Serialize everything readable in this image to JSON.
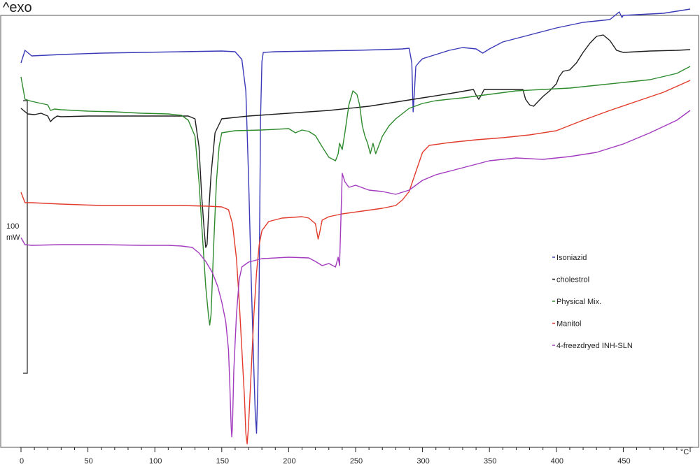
{
  "header": {
    "exo_label": "^exo"
  },
  "scale_bar": {
    "value_label": "100",
    "unit_label": "mW"
  },
  "chart_data": {
    "type": "line",
    "title": "",
    "xlabel": "",
    "ylabel": "",
    "x_unit": "°C",
    "xlim": [
      0,
      500
    ],
    "ylim": [
      0,
      650
    ],
    "x_ticks": [
      0,
      50,
      100,
      150,
      200,
      250,
      300,
      350,
      400,
      450
    ],
    "grid": false,
    "legend_position": "right",
    "series": [
      {
        "name": "Isoniazid",
        "color": "#3a3ab8",
        "points": [
          [
            0,
            560
          ],
          [
            3,
            578
          ],
          [
            8,
            570
          ],
          [
            30,
            572
          ],
          [
            60,
            574
          ],
          [
            90,
            575
          ],
          [
            120,
            576
          ],
          [
            150,
            577
          ],
          [
            160,
            576
          ],
          [
            165,
            565
          ],
          [
            168,
            520
          ],
          [
            170,
            400
          ],
          [
            172,
            250
          ],
          [
            174,
            120
          ],
          [
            175,
            60
          ],
          [
            176,
            30
          ],
          [
            177,
            100
          ],
          [
            178,
            250
          ],
          [
            179,
            480
          ],
          [
            180,
            562
          ],
          [
            181,
            575
          ],
          [
            190,
            576
          ],
          [
            220,
            577
          ],
          [
            250,
            578
          ],
          [
            270,
            579
          ],
          [
            285,
            580
          ],
          [
            290,
            581
          ],
          [
            292,
            560
          ],
          [
            293,
            490
          ],
          [
            294,
            520
          ],
          [
            295,
            555
          ],
          [
            297,
            560
          ],
          [
            300,
            566
          ],
          [
            310,
            572
          ],
          [
            320,
            578
          ],
          [
            330,
            582
          ],
          [
            340,
            580
          ],
          [
            345,
            574
          ],
          [
            350,
            580
          ],
          [
            360,
            590
          ],
          [
            380,
            600
          ],
          [
            400,
            610
          ],
          [
            420,
            618
          ],
          [
            440,
            622
          ],
          [
            447,
            633
          ],
          [
            449,
            625
          ],
          [
            450,
            628
          ],
          [
            460,
            629
          ],
          [
            480,
            631
          ],
          [
            500,
            637
          ]
        ]
      },
      {
        "name": "cholestrol",
        "color": "#1e1e1e",
        "points": [
          [
            0,
            495
          ],
          [
            5,
            487
          ],
          [
            10,
            486
          ],
          [
            15,
            488
          ],
          [
            20,
            484
          ],
          [
            22,
            476
          ],
          [
            24,
            480
          ],
          [
            27,
            484
          ],
          [
            30,
            483
          ],
          [
            50,
            484
          ],
          [
            70,
            484
          ],
          [
            90,
            484
          ],
          [
            100,
            484
          ],
          [
            115,
            484
          ],
          [
            125,
            484
          ],
          [
            130,
            480
          ],
          [
            133,
            440
          ],
          [
            135,
            370
          ],
          [
            137,
            318
          ],
          [
            138,
            296
          ],
          [
            139,
            300
          ],
          [
            140,
            340
          ],
          [
            142,
            400
          ],
          [
            145,
            460
          ],
          [
            150,
            480
          ],
          [
            170,
            484
          ],
          [
            200,
            488
          ],
          [
            230,
            492
          ],
          [
            260,
            498
          ],
          [
            280,
            504
          ],
          [
            300,
            510
          ],
          [
            320,
            516
          ],
          [
            338,
            522
          ],
          [
            340,
            514
          ],
          [
            342,
            508
          ],
          [
            344,
            514
          ],
          [
            346,
            522
          ],
          [
            360,
            522
          ],
          [
            375,
            522
          ],
          [
            377,
            508
          ],
          [
            380,
            500
          ],
          [
            383,
            498
          ],
          [
            386,
            504
          ],
          [
            390,
            512
          ],
          [
            395,
            520
          ],
          [
            400,
            530
          ],
          [
            402,
            540
          ],
          [
            405,
            548
          ],
          [
            410,
            550
          ],
          [
            415,
            560
          ],
          [
            420,
            575
          ],
          [
            425,
            588
          ],
          [
            430,
            598
          ],
          [
            435,
            600
          ],
          [
            440,
            592
          ],
          [
            445,
            578
          ],
          [
            450,
            575
          ],
          [
            470,
            577
          ],
          [
            490,
            578
          ],
          [
            500,
            579
          ]
        ]
      },
      {
        "name": "Physical Mix.",
        "color": "#2e8b2e",
        "points": [
          [
            0,
            540
          ],
          [
            3,
            508
          ],
          [
            8,
            505
          ],
          [
            20,
            500
          ],
          [
            22,
            492
          ],
          [
            25,
            494
          ],
          [
            30,
            493
          ],
          [
            50,
            491
          ],
          [
            70,
            490
          ],
          [
            90,
            488
          ],
          [
            110,
            487
          ],
          [
            120,
            485
          ],
          [
            125,
            478
          ],
          [
            130,
            455
          ],
          [
            133,
            390
          ],
          [
            136,
            300
          ],
          [
            138,
            240
          ],
          [
            140,
            200
          ],
          [
            141,
            185
          ],
          [
            142,
            200
          ],
          [
            144,
            300
          ],
          [
            146,
            390
          ],
          [
            148,
            440
          ],
          [
            150,
            460
          ],
          [
            160,
            463
          ],
          [
            180,
            464
          ],
          [
            200,
            466
          ],
          [
            205,
            460
          ],
          [
            210,
            464
          ],
          [
            215,
            462
          ],
          [
            220,
            456
          ],
          [
            225,
            440
          ],
          [
            230,
            425
          ],
          [
            235,
            420
          ],
          [
            237,
            430
          ],
          [
            238,
            445
          ],
          [
            240,
            436
          ],
          [
            242,
            460
          ],
          [
            245,
            500
          ],
          [
            248,
            520
          ],
          [
            251,
            515
          ],
          [
            253,
            500
          ],
          [
            255,
            470
          ],
          [
            257,
            455
          ],
          [
            259,
            445
          ],
          [
            261,
            430
          ],
          [
            263,
            445
          ],
          [
            265,
            430
          ],
          [
            267,
            440
          ],
          [
            270,
            455
          ],
          [
            275,
            470
          ],
          [
            280,
            480
          ],
          [
            290,
            495
          ],
          [
            300,
            502
          ],
          [
            310,
            506
          ],
          [
            330,
            510
          ],
          [
            350,
            515
          ],
          [
            370,
            520
          ],
          [
            390,
            522
          ],
          [
            410,
            524
          ],
          [
            430,
            528
          ],
          [
            450,
            532
          ],
          [
            470,
            536
          ],
          [
            490,
            545
          ],
          [
            500,
            555
          ]
        ]
      },
      {
        "name": "Manitol",
        "color": "#e23b2b",
        "points": [
          [
            0,
            375
          ],
          [
            3,
            360
          ],
          [
            8,
            360
          ],
          [
            30,
            358
          ],
          [
            60,
            356
          ],
          [
            90,
            356
          ],
          [
            120,
            356
          ],
          [
            140,
            355
          ],
          [
            150,
            354
          ],
          [
            155,
            350
          ],
          [
            158,
            330
          ],
          [
            161,
            280
          ],
          [
            163,
            220
          ],
          [
            165,
            150
          ],
          [
            167,
            80
          ],
          [
            168,
            30
          ],
          [
            169,
            15
          ],
          [
            170,
            40
          ],
          [
            172,
            120
          ],
          [
            174,
            200
          ],
          [
            176,
            260
          ],
          [
            178,
            300
          ],
          [
            180,
            320
          ],
          [
            185,
            333
          ],
          [
            195,
            338
          ],
          [
            210,
            340
          ],
          [
            215,
            338
          ],
          [
            220,
            330
          ],
          [
            222,
            308
          ],
          [
            223,
            316
          ],
          [
            225,
            335
          ],
          [
            230,
            340
          ],
          [
            240,
            344
          ],
          [
            255,
            348
          ],
          [
            270,
            352
          ],
          [
            280,
            356
          ],
          [
            285,
            364
          ],
          [
            290,
            376
          ],
          [
            295,
            404
          ],
          [
            300,
            432
          ],
          [
            305,
            442
          ],
          [
            320,
            446
          ],
          [
            340,
            450
          ],
          [
            360,
            453
          ],
          [
            380,
            457
          ],
          [
            400,
            463
          ],
          [
            420,
            478
          ],
          [
            440,
            492
          ],
          [
            460,
            505
          ],
          [
            480,
            518
          ],
          [
            500,
            535
          ]
        ]
      },
      {
        "name": "4-freezdryed INH-SLN",
        "color": "#a33bbf",
        "points": [
          [
            0,
            310
          ],
          [
            3,
            300
          ],
          [
            8,
            299
          ],
          [
            30,
            300
          ],
          [
            60,
            300
          ],
          [
            90,
            299
          ],
          [
            110,
            299
          ],
          [
            120,
            298
          ],
          [
            128,
            296
          ],
          [
            133,
            288
          ],
          [
            138,
            276
          ],
          [
            143,
            260
          ],
          [
            147,
            240
          ],
          [
            150,
            218
          ],
          [
            153,
            190
          ],
          [
            155,
            150
          ],
          [
            156,
            100
          ],
          [
            157,
            40
          ],
          [
            157.5,
            25
          ],
          [
            158,
            40
          ],
          [
            159,
            120
          ],
          [
            161,
            200
          ],
          [
            163,
            250
          ],
          [
            165,
            268
          ],
          [
            170,
            275
          ],
          [
            180,
            280
          ],
          [
            200,
            282
          ],
          [
            215,
            281
          ],
          [
            220,
            276
          ],
          [
            225,
            270
          ],
          [
            230,
            273
          ],
          [
            235,
            268
          ],
          [
            237,
            282
          ],
          [
            238,
            270
          ],
          [
            240,
            402
          ],
          [
            242,
            390
          ],
          [
            245,
            382
          ],
          [
            250,
            385
          ],
          [
            260,
            378
          ],
          [
            270,
            376
          ],
          [
            280,
            372
          ],
          [
            290,
            378
          ],
          [
            300,
            392
          ],
          [
            310,
            400
          ],
          [
            330,
            410
          ],
          [
            350,
            420
          ],
          [
            370,
            424
          ],
          [
            390,
            422
          ],
          [
            410,
            426
          ],
          [
            430,
            432
          ],
          [
            450,
            444
          ],
          [
            470,
            460
          ],
          [
            490,
            478
          ],
          [
            500,
            492
          ]
        ]
      }
    ]
  }
}
